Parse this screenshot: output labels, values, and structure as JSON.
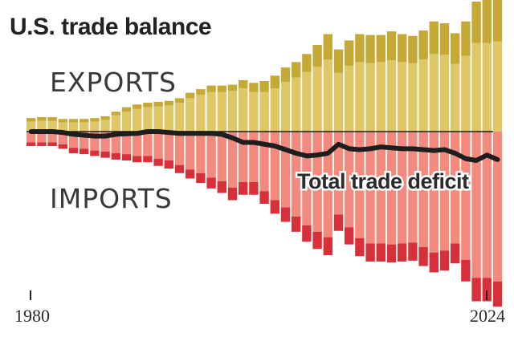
{
  "chart_data": {
    "type": "bar",
    "title": "U.S. trade balance",
    "x": [
      1980,
      1981,
      1982,
      1983,
      1984,
      1985,
      1986,
      1987,
      1988,
      1989,
      1990,
      1991,
      1992,
      1993,
      1994,
      1995,
      1996,
      1997,
      1998,
      1999,
      2000,
      2001,
      2002,
      2003,
      2004,
      2005,
      2006,
      2007,
      2008,
      2009,
      2010,
      2011,
      2012,
      2013,
      2014,
      2015,
      2016,
      2017,
      2018,
      2019,
      2020,
      2021,
      2022,
      2023,
      2024
    ],
    "x_tick_labels": [
      "1980",
      "2024"
    ],
    "ylim": [
      -105,
      80
    ],
    "grid": false,
    "legend": "none",
    "annotations": {
      "exports": "EXPORTS",
      "imports": "IMPORTS",
      "deficit": "Total trade deficit"
    },
    "series": [
      {
        "name": "EXPORTS",
        "segments": {
          "light": [
            5.5,
            6,
            6,
            5,
            5,
            5,
            5.5,
            6.5,
            9,
            11,
            12.5,
            13.5,
            14,
            14.5,
            16,
            18.5,
            20.5,
            22,
            22,
            22.5,
            24,
            22,
            22,
            24,
            27.5,
            30,
            33,
            36,
            40,
            32.5,
            36.5,
            38.5,
            38,
            38.5,
            39.5,
            38.5,
            38,
            40,
            43,
            42.5,
            37.5,
            42,
            49,
            49,
            50
          ],
          "dark": [
            2,
            2,
            2,
            2,
            2,
            2,
            2,
            2,
            2,
            2.5,
            2.5,
            2.5,
            2.5,
            2.5,
            2.5,
            3,
            3,
            3.5,
            3.5,
            3.5,
            4.5,
            5,
            6,
            7,
            8,
            8.5,
            10,
            12,
            14,
            13,
            14,
            15.5,
            15.5,
            15,
            16,
            15.5,
            15,
            16,
            18,
            17.5,
            17,
            19,
            23,
            24,
            26
          ]
        }
      },
      {
        "name": "IMPORTS",
        "segments": {
          "light": [
            -6,
            -6,
            -6,
            -7,
            -9,
            -9.5,
            -10.5,
            -11,
            -12,
            -12.5,
            -13.5,
            -13.5,
            -15,
            -16,
            -18.5,
            -21,
            -23,
            -25.5,
            -27.5,
            -31,
            -28,
            -28,
            -33,
            -38,
            -42,
            -47,
            -52,
            -55.5,
            -58.5,
            -46,
            -53,
            -59,
            -62,
            -62,
            -62.5,
            -62,
            -61.5,
            -64,
            -67,
            -66,
            -62,
            -71,
            -81,
            -81,
            -83
          ]
        },
        "extra": {
          "dark": [
            2,
            2,
            2,
            2.5,
            3,
            3,
            3,
            3.5,
            3.5,
            3.5,
            3.5,
            3.5,
            4,
            4.5,
            4.5,
            5,
            5.5,
            6,
            6.5,
            7,
            7,
            7,
            7,
            7.5,
            8,
            8.5,
            9,
            9.5,
            10,
            9,
            9.5,
            10,
            10,
            10,
            10,
            10,
            10,
            10.5,
            11,
            11,
            11,
            12,
            13,
            13,
            14
          ]
        }
      },
      {
        "name": "Total trade deficit",
        "values": [
          0,
          0,
          0,
          -0.5,
          -1.5,
          -2,
          -2.5,
          -2.5,
          -1.5,
          -1.2,
          -1,
          0,
          0,
          -0.5,
          -1,
          -1,
          -1,
          -1,
          -1.5,
          -3.5,
          -6,
          -6,
          -7,
          -8,
          -10,
          -12,
          -13.5,
          -13,
          -12,
          -7,
          -9.5,
          -10,
          -9.5,
          -8.5,
          -9,
          -9.5,
          -9.5,
          -10,
          -10.5,
          -10,
          -12,
          -15,
          -16,
          -13,
          -15.5
        ]
      }
    ]
  }
}
